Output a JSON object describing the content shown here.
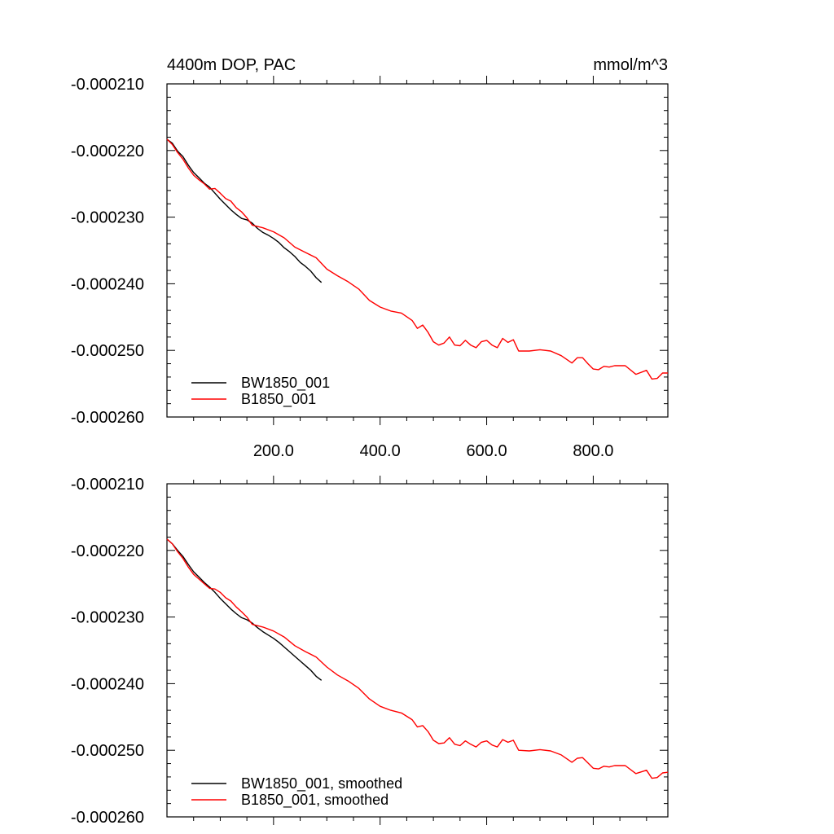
{
  "header": {
    "title": "4400m DOP, PAC",
    "units": "mmol/m^3"
  },
  "colors": {
    "bw1850": "#000000",
    "b1850": "#ff0000",
    "axis": "#000000",
    "background": "#ffffff"
  },
  "chart_data": [
    {
      "type": "line",
      "title": "",
      "xlabel": "",
      "ylabel": "",
      "xlim": [
        0,
        940
      ],
      "ylim": [
        -0.00026,
        -0.00021
      ],
      "xticks": [
        200,
        400,
        600,
        800
      ],
      "xtick_labels": [
        "200.0",
        "400.0",
        "600.0",
        "800.0"
      ],
      "yticks": [
        -0.00021,
        -0.00022,
        -0.00023,
        -0.00024,
        -0.00025,
        -0.00026
      ],
      "ytick_labels": [
        "-0.000210",
        "-0.000220",
        "-0.000230",
        "-0.000240",
        "-0.000250",
        "-0.000260"
      ],
      "grid": false,
      "legend": "bottom-left",
      "series": [
        {
          "name": "BW1850_001",
          "color": "#000000",
          "x": [
            0,
            10,
            20,
            30,
            40,
            50,
            60,
            70,
            80,
            90,
            100,
            110,
            120,
            130,
            140,
            150,
            160,
            170,
            180,
            190,
            200,
            210,
            220,
            230,
            240,
            250,
            260,
            270,
            280,
            290
          ],
          "y": [
            -0.0002183,
            -0.0002189,
            -0.0002201,
            -0.0002209,
            -0.0002222,
            -0.0002233,
            -0.0002241,
            -0.0002249,
            -0.0002255,
            -0.0002264,
            -0.0002273,
            -0.0002281,
            -0.0002289,
            -0.0002296,
            -0.0002302,
            -0.0002304,
            -0.0002309,
            -0.0002317,
            -0.0002323,
            -0.0002327,
            -0.0002332,
            -0.0002338,
            -0.0002346,
            -0.0002352,
            -0.0002359,
            -0.0002368,
            -0.0002374,
            -0.0002381,
            -0.0002391,
            -0.0002398
          ]
        },
        {
          "name": "B1850_001",
          "color": "#ff0000",
          "x": [
            0,
            10,
            20,
            30,
            40,
            50,
            60,
            70,
            80,
            90,
            100,
            110,
            120,
            130,
            140,
            150,
            160,
            180,
            200,
            220,
            240,
            260,
            280,
            300,
            320,
            340,
            360,
            380,
            400,
            420,
            440,
            460,
            470,
            480,
            490,
            500,
            510,
            520,
            530,
            540,
            550,
            560,
            570,
            580,
            590,
            600,
            610,
            620,
            630,
            640,
            650,
            660,
            680,
            700,
            720,
            740,
            760,
            770,
            780,
            790,
            800,
            810,
            820,
            830,
            840,
            860,
            880,
            900,
            910,
            920,
            930,
            940
          ],
          "y": [
            -0.0002183,
            -0.0002191,
            -0.0002203,
            -0.0002213,
            -0.0002226,
            -0.0002237,
            -0.0002244,
            -0.000225,
            -0.0002258,
            -0.0002257,
            -0.0002264,
            -0.0002272,
            -0.0002276,
            -0.0002286,
            -0.0002292,
            -0.0002301,
            -0.0002312,
            -0.0002316,
            -0.0002322,
            -0.0002331,
            -0.0002345,
            -0.0002353,
            -0.0002361,
            -0.0002378,
            -0.0002388,
            -0.0002397,
            -0.0002408,
            -0.0002425,
            -0.0002435,
            -0.0002441,
            -0.0002444,
            -0.0002455,
            -0.0002467,
            -0.0002462,
            -0.0002473,
            -0.0002487,
            -0.0002492,
            -0.0002489,
            -0.000248,
            -0.0002492,
            -0.0002493,
            -0.0002485,
            -0.0002492,
            -0.0002496,
            -0.0002487,
            -0.0002485,
            -0.0002492,
            -0.0002496,
            -0.0002482,
            -0.0002488,
            -0.0002484,
            -0.0002501,
            -0.0002501,
            -0.0002499,
            -0.0002501,
            -0.0002508,
            -0.0002519,
            -0.0002511,
            -0.0002511,
            -0.000252,
            -0.0002528,
            -0.0002529,
            -0.0002524,
            -0.0002525,
            -0.0002523,
            -0.0002523,
            -0.0002536,
            -0.000253,
            -0.0002543,
            -0.0002542,
            -0.0002534,
            -0.0002534
          ]
        }
      ]
    },
    {
      "type": "line",
      "title": "",
      "xlabel": "",
      "ylabel": "",
      "xlim": [
        0,
        940
      ],
      "ylim": [
        -0.00026,
        -0.00021
      ],
      "xticks": [
        200,
        400,
        600,
        800
      ],
      "xtick_labels": [],
      "yticks": [
        -0.00021,
        -0.00022,
        -0.00023,
        -0.00024,
        -0.00025,
        -0.00026
      ],
      "ytick_labels": [
        "-0.000210",
        "-0.000220",
        "-0.000230",
        "-0.000240",
        "-0.000250",
        "-0.000260"
      ],
      "grid": false,
      "legend": "bottom-left",
      "series": [
        {
          "name": "BW1850_001, smoothed",
          "color": "#000000",
          "x": [
            0,
            10,
            20,
            30,
            40,
            50,
            60,
            70,
            80,
            90,
            100,
            110,
            120,
            130,
            140,
            150,
            160,
            170,
            180,
            190,
            200,
            210,
            220,
            230,
            240,
            250,
            260,
            270,
            280,
            290
          ],
          "y": [
            -0.0002183,
            -0.000219,
            -0.00022,
            -0.0002209,
            -0.0002221,
            -0.0002232,
            -0.000224,
            -0.0002248,
            -0.0002255,
            -0.0002263,
            -0.0002272,
            -0.000228,
            -0.0002288,
            -0.0002295,
            -0.0002301,
            -0.0002304,
            -0.0002309,
            -0.0002316,
            -0.0002322,
            -0.0002327,
            -0.0002332,
            -0.0002338,
            -0.0002345,
            -0.0002352,
            -0.0002359,
            -0.0002366,
            -0.0002373,
            -0.000238,
            -0.0002389,
            -0.0002395
          ]
        },
        {
          "name": "B1850_001, smoothed",
          "color": "#ff0000",
          "x": [
            0,
            10,
            20,
            30,
            40,
            50,
            60,
            70,
            80,
            90,
            100,
            110,
            120,
            130,
            140,
            150,
            160,
            180,
            200,
            220,
            240,
            260,
            280,
            300,
            320,
            340,
            360,
            380,
            400,
            420,
            440,
            460,
            470,
            480,
            490,
            500,
            510,
            520,
            530,
            540,
            550,
            560,
            570,
            580,
            590,
            600,
            610,
            620,
            630,
            640,
            650,
            660,
            680,
            700,
            720,
            740,
            760,
            770,
            780,
            790,
            800,
            810,
            820,
            830,
            840,
            860,
            880,
            900,
            910,
            920,
            930,
            940
          ],
          "y": [
            -0.0002183,
            -0.000219,
            -0.0002202,
            -0.0002212,
            -0.0002225,
            -0.0002236,
            -0.0002243,
            -0.000225,
            -0.0002257,
            -0.0002258,
            -0.0002263,
            -0.0002271,
            -0.0002276,
            -0.0002285,
            -0.0002292,
            -0.00023,
            -0.0002311,
            -0.0002315,
            -0.0002321,
            -0.000233,
            -0.0002343,
            -0.0002352,
            -0.000236,
            -0.0002375,
            -0.0002387,
            -0.0002396,
            -0.0002407,
            -0.0002423,
            -0.0002434,
            -0.000244,
            -0.0002444,
            -0.0002454,
            -0.0002465,
            -0.0002463,
            -0.0002472,
            -0.0002485,
            -0.000249,
            -0.0002489,
            -0.0002481,
            -0.0002491,
            -0.0002493,
            -0.0002486,
            -0.0002491,
            -0.0002495,
            -0.0002488,
            -0.0002486,
            -0.0002492,
            -0.0002495,
            -0.0002484,
            -0.0002488,
            -0.0002485,
            -0.00025,
            -0.0002501,
            -0.0002499,
            -0.0002501,
            -0.0002507,
            -0.0002518,
            -0.0002512,
            -0.0002511,
            -0.0002519,
            -0.0002527,
            -0.0002528,
            -0.0002524,
            -0.0002525,
            -0.0002523,
            -0.0002523,
            -0.0002535,
            -0.000253,
            -0.0002542,
            -0.0002541,
            -0.0002534,
            -0.0002533
          ]
        }
      ]
    }
  ]
}
